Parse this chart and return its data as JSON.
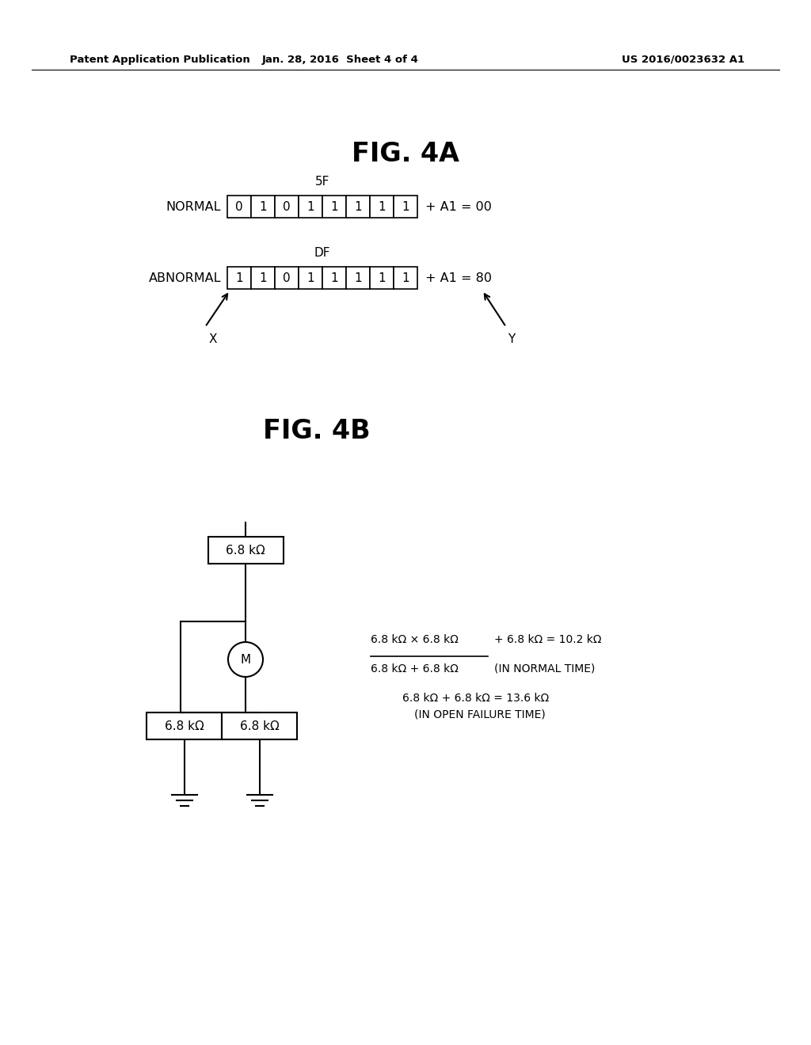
{
  "bg_color": "#ffffff",
  "header_left": "Patent Application Publication",
  "header_center": "Jan. 28, 2016  Sheet 4 of 4",
  "header_right": "US 2016/0023632 A1",
  "fig4a_title": "FIG. 4A",
  "fig4b_title": "FIG. 4B",
  "normal_label": "NORMAL",
  "normal_bits": [
    "0",
    "1",
    "0",
    "1",
    "1",
    "1",
    "1",
    "1"
  ],
  "normal_suffix": "+ A1 = 00",
  "normal_hex": "5F",
  "abnormal_label": "ABNORMAL",
  "abnormal_bits": [
    "1",
    "1",
    "0",
    "1",
    "1",
    "1",
    "1",
    "1"
  ],
  "abnormal_suffix": "+ A1 = 80",
  "abnormal_hex": "DF",
  "arrow_x_label": "X",
  "arrow_y_label": "Y",
  "res_top": "6.8 kΩ",
  "res_left": "6.8 kΩ",
  "res_right": "6.8 kΩ",
  "motor_label": "M",
  "formula_line1_num": "6.8 kΩ × 6.8 kΩ",
  "formula_line1_den": "6.8 kΩ + 6.8 kΩ",
  "formula_line1_suffix": "+ 6.8 kΩ = 10.2 kΩ",
  "formula_line2": "(IN NORMAL TIME)",
  "formula_line3": "6.8 kΩ + 6.8 kΩ = 13.6 kΩ",
  "formula_line4": "(IN OPEN FAILURE TIME)"
}
